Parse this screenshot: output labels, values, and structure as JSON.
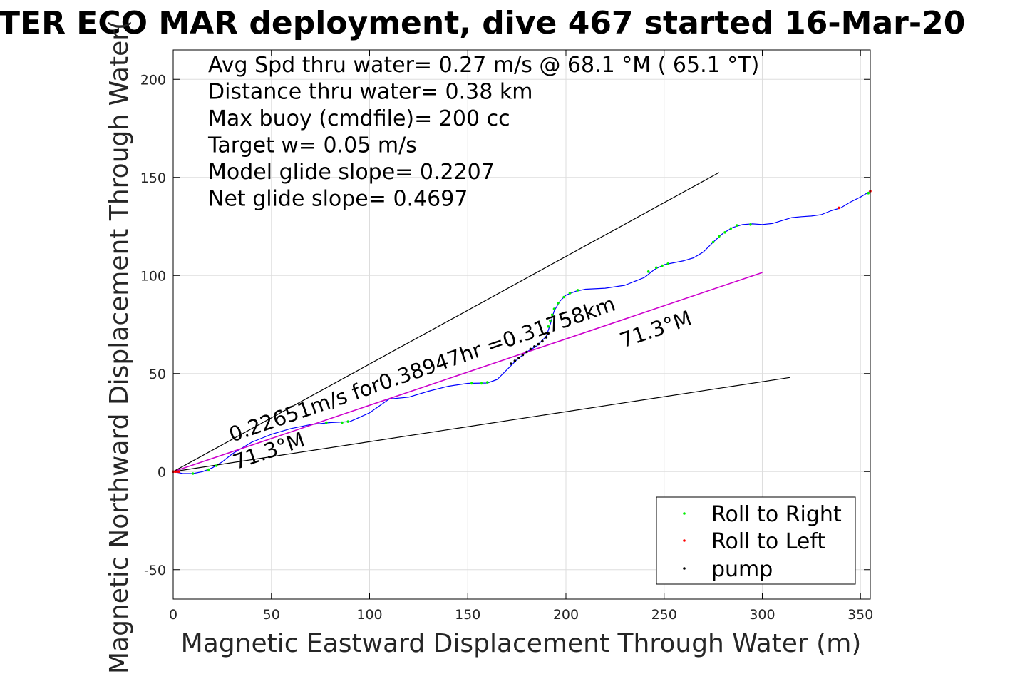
{
  "colors": {
    "track": "#0000ff",
    "model": "#cc00cc",
    "roll_right": "#00ee00",
    "roll_left": "#ff0000",
    "pump": "#000000",
    "grid": "#dddddd"
  },
  "chart_data": {
    "type": "line",
    "title": "TER ECO MAR deployment, dive 467 started 16-Mar-20",
    "xlabel": "Magnetic Eastward Displacement Through Water (m)",
    "ylabel": "Magnetic Northward Displacement Through Water(",
    "xlim": [
      0,
      355
    ],
    "ylim": [
      -65,
      215
    ],
    "xticks": [
      0,
      50,
      100,
      150,
      200,
      250,
      300,
      350
    ],
    "yticks": [
      -50,
      0,
      50,
      100,
      150,
      200
    ],
    "grid": true,
    "legend_placement": "bottom-right",
    "info_lines": [
      "Avg Spd thru water=  0.27 m/s @  68.1 °M ( 65.1 °T)",
      "Distance thru water=  0.38 km",
      "Max buoy (cmdfile)= 200 cc",
      "Target w= 0.05 m/s",
      "Model glide slope= 0.2207",
      "Net glide slope= 0.4697"
    ],
    "annotations": [
      {
        "text": "0.22651m/s for0.38947hr =0.31758km",
        "x": 30,
        "y": 15,
        "angle_deg": -19
      },
      {
        "text": "71.3°M",
        "x": 32,
        "y": 1,
        "angle_deg": -19
      },
      {
        "text": "71.3°M",
        "x": 229,
        "y": 63,
        "angle_deg": -19
      }
    ],
    "series": [
      {
        "name": "Roll to Right",
        "kind": "points",
        "points": [
          [
            10,
            -1
          ],
          [
            18,
            1
          ],
          [
            22,
            3
          ],
          [
            78,
            25
          ],
          [
            86,
            25
          ],
          [
            89,
            25.5
          ],
          [
            152,
            45
          ],
          [
            157,
            45
          ],
          [
            160,
            45.5
          ],
          [
            191,
            74
          ],
          [
            192,
            77
          ],
          [
            193,
            80
          ],
          [
            194,
            83
          ],
          [
            196,
            86
          ],
          [
            199,
            89
          ],
          [
            202,
            91
          ],
          [
            206,
            92.5
          ],
          [
            242,
            102
          ],
          [
            246,
            104
          ],
          [
            249,
            105
          ],
          [
            252,
            106
          ],
          [
            275,
            117
          ],
          [
            278,
            120
          ],
          [
            281,
            122
          ],
          [
            284,
            124
          ],
          [
            287,
            125.5
          ],
          [
            294,
            126
          ],
          [
            354,
            142
          ]
        ]
      },
      {
        "name": "Roll to Left",
        "kind": "points",
        "points": [
          [
            0,
            0
          ],
          [
            1,
            0
          ],
          [
            2,
            0
          ],
          [
            3,
            0
          ],
          [
            339,
            134.5
          ],
          [
            355,
            143
          ]
        ]
      },
      {
        "name": "pump",
        "kind": "points",
        "points": [
          [
            172,
            55
          ],
          [
            174,
            56.5
          ],
          [
            176,
            58
          ],
          [
            178,
            59.5
          ],
          [
            180,
            61
          ],
          [
            182,
            62.5
          ],
          [
            184,
            63.8
          ],
          [
            186,
            65
          ],
          [
            188,
            66.5
          ],
          [
            190,
            68.5
          ],
          [
            191,
            70.5
          ]
        ]
      },
      {
        "name": "",
        "kind": "track",
        "points": [
          [
            0,
            0
          ],
          [
            5,
            -1
          ],
          [
            10,
            -1
          ],
          [
            15,
            0
          ],
          [
            20,
            2
          ],
          [
            25,
            5
          ],
          [
            30,
            9
          ],
          [
            40,
            15
          ],
          [
            50,
            19
          ],
          [
            60,
            22
          ],
          [
            70,
            24
          ],
          [
            80,
            25
          ],
          [
            90,
            25.5
          ],
          [
            100,
            30
          ],
          [
            110,
            37
          ],
          [
            120,
            38
          ],
          [
            130,
            41
          ],
          [
            140,
            43.5
          ],
          [
            150,
            45
          ],
          [
            160,
            45.2
          ],
          [
            165,
            47
          ],
          [
            170,
            52
          ],
          [
            175,
            57
          ],
          [
            180,
            61
          ],
          [
            185,
            64
          ],
          [
            190,
            69
          ],
          [
            192,
            75
          ],
          [
            194,
            82
          ],
          [
            197,
            87
          ],
          [
            200,
            90
          ],
          [
            205,
            92
          ],
          [
            210,
            93
          ],
          [
            220,
            93.5
          ],
          [
            230,
            95
          ],
          [
            240,
            99
          ],
          [
            245,
            103
          ],
          [
            250,
            105.5
          ],
          [
            255,
            106.5
          ],
          [
            260,
            107.5
          ],
          [
            265,
            109
          ],
          [
            270,
            112
          ],
          [
            275,
            117
          ],
          [
            280,
            121.5
          ],
          [
            285,
            124.5
          ],
          [
            290,
            126
          ],
          [
            295,
            126.3
          ],
          [
            300,
            126
          ],
          [
            305,
            126.5
          ],
          [
            310,
            128
          ],
          [
            315,
            129.5
          ],
          [
            320,
            130
          ],
          [
            325,
            130.3
          ],
          [
            330,
            131
          ],
          [
            335,
            133
          ],
          [
            340,
            134.5
          ],
          [
            345,
            137.5
          ],
          [
            350,
            140
          ],
          [
            355,
            143
          ]
        ]
      },
      {
        "name": "",
        "kind": "model",
        "points": [
          [
            0,
            0
          ],
          [
            300,
            101.5
          ]
        ]
      },
      {
        "name": "",
        "kind": "bound",
        "points": [
          [
            0,
            0
          ],
          [
            278,
            152.5
          ]
        ]
      },
      {
        "name": "",
        "kind": "bound",
        "points": [
          [
            0,
            0
          ],
          [
            314,
            48
          ]
        ]
      }
    ]
  }
}
